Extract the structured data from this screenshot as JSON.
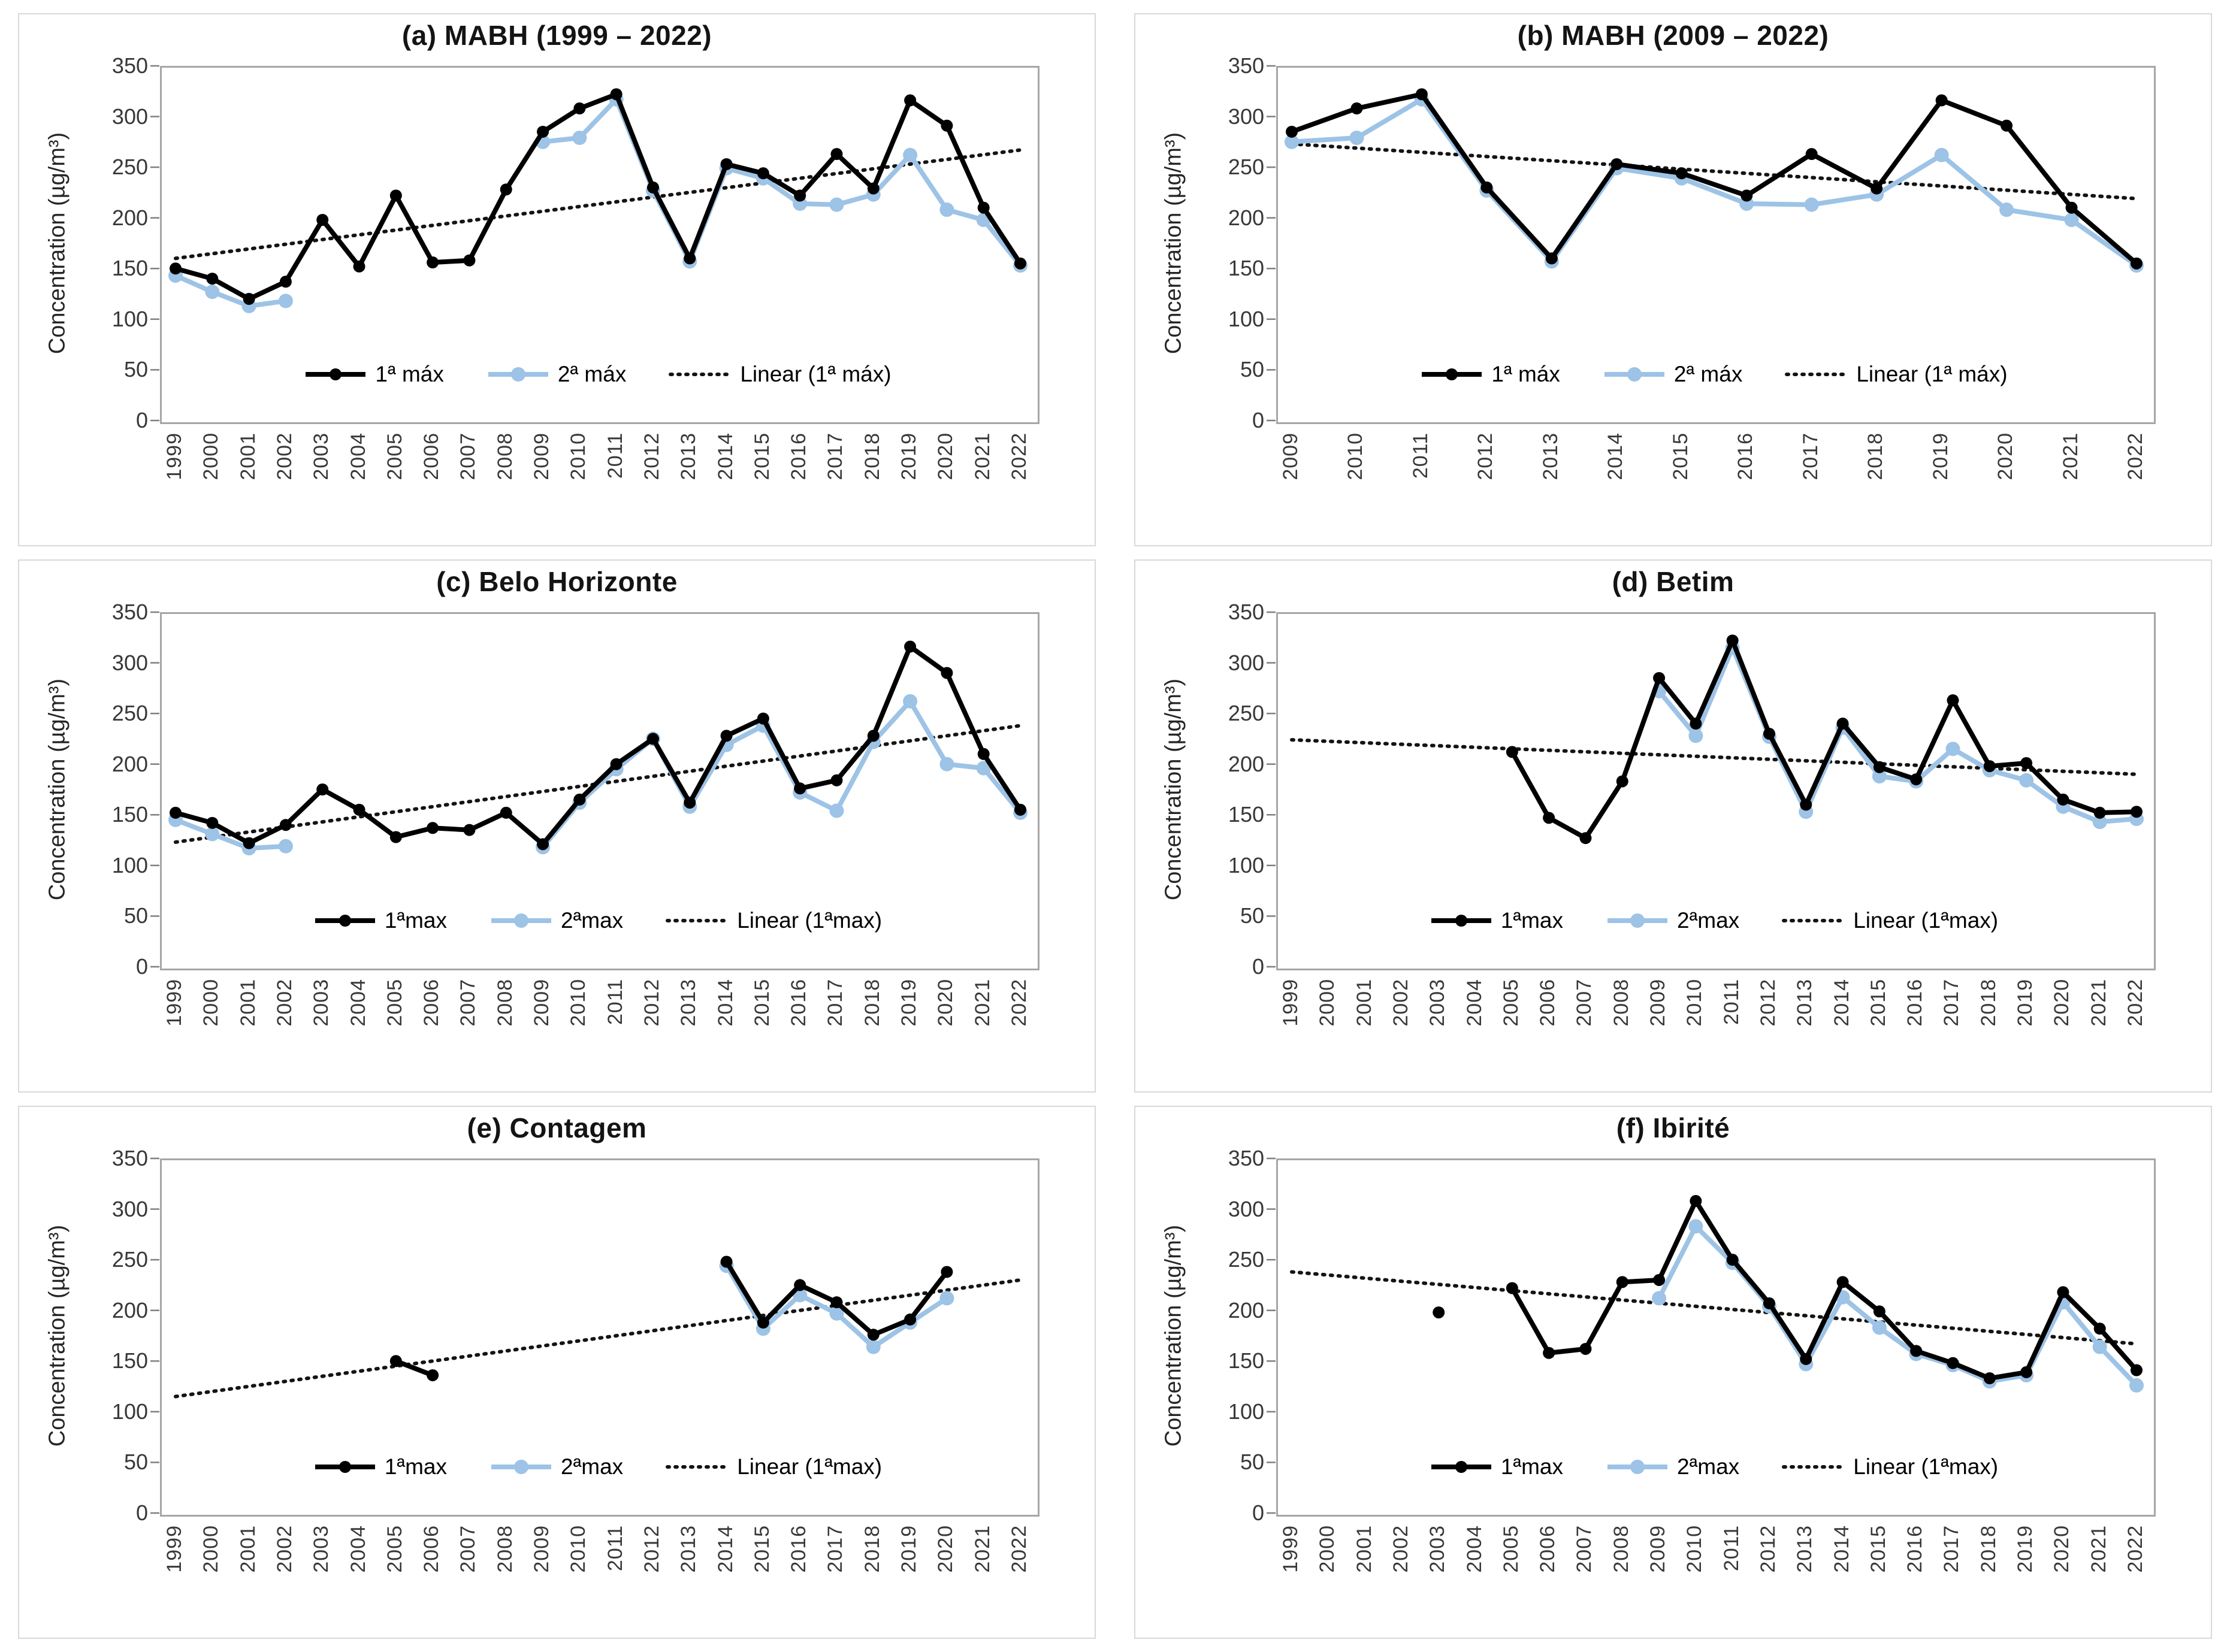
{
  "figure": {
    "ylabel": "Concentration (µg/m³)",
    "background": "#ffffff",
    "series1_color": "#000000",
    "series2_color": "#9dc3e6",
    "trend_color": "#141414",
    "axis_color": "#a6a6a6",
    "tick_color": "#383838"
  },
  "chart_data": [
    {
      "type": "line",
      "title": "(a) MABH (1999 – 2022)",
      "ylabel": "Concentration (µg/m³)",
      "ylim": [
        0,
        350
      ],
      "ytick_step": 50,
      "grid": false,
      "legend_position": "bottom-center-inside",
      "years": [
        1999,
        2000,
        2001,
        2002,
        2003,
        2004,
        2005,
        2006,
        2007,
        2008,
        2009,
        2010,
        2011,
        2012,
        2013,
        2014,
        2015,
        2016,
        2017,
        2018,
        2019,
        2020,
        2021,
        2022
      ],
      "series": [
        {
          "name": "1ª máx",
          "values": [
            150,
            140,
            120,
            137,
            198,
            152,
            222,
            156,
            158,
            228,
            285,
            308,
            322,
            230,
            160,
            253,
            244,
            222,
            263,
            229,
            316,
            291,
            210,
            155
          ]
        },
        {
          "name": "2ª máx",
          "values": [
            143,
            127,
            113,
            118,
            null,
            null,
            null,
            null,
            null,
            null,
            275,
            279,
            317,
            227,
            157,
            249,
            239,
            214,
            213,
            223,
            262,
            208,
            198,
            153
          ]
        }
      ],
      "trendline": {
        "name": "Linear (1ª máx)",
        "start": 160,
        "end": 267
      }
    },
    {
      "type": "line",
      "title": "(b) MABH (2009 – 2022)",
      "ylabel": "Concentration (µg/m³)",
      "ylim": [
        0,
        350
      ],
      "ytick_step": 50,
      "grid": false,
      "legend_position": "bottom-center-inside",
      "years": [
        2009,
        2010,
        2011,
        2012,
        2013,
        2014,
        2015,
        2016,
        2017,
        2018,
        2019,
        2020,
        2021,
        2022
      ],
      "series": [
        {
          "name": "1ª máx",
          "values": [
            285,
            308,
            322,
            230,
            160,
            253,
            244,
            222,
            263,
            229,
            316,
            291,
            210,
            155
          ]
        },
        {
          "name": "2ª máx",
          "values": [
            275,
            279,
            317,
            227,
            157,
            249,
            239,
            214,
            213,
            223,
            262,
            208,
            198,
            153
          ]
        }
      ],
      "trendline": {
        "name": "Linear (1ª máx)",
        "start": 273,
        "end": 219
      }
    },
    {
      "type": "line",
      "title": "(c) Belo Horizonte",
      "ylabel": "Concentration (µg/m³)",
      "ylim": [
        0,
        350
      ],
      "ytick_step": 50,
      "grid": false,
      "legend_position": "bottom-center-inside",
      "years": [
        1999,
        2000,
        2001,
        2002,
        2003,
        2004,
        2005,
        2006,
        2007,
        2008,
        2009,
        2010,
        2011,
        2012,
        2013,
        2014,
        2015,
        2016,
        2017,
        2018,
        2019,
        2020,
        2021,
        2022
      ],
      "series": [
        {
          "name": "1ªmax",
          "values": [
            152,
            142,
            122,
            140,
            175,
            155,
            128,
            137,
            135,
            152,
            121,
            165,
            200,
            225,
            162,
            228,
            245,
            176,
            184,
            228,
            316,
            290,
            210,
            155
          ]
        },
        {
          "name": "2ªmax",
          "values": [
            145,
            131,
            117,
            119,
            null,
            null,
            null,
            null,
            null,
            null,
            118,
            162,
            195,
            225,
            158,
            219,
            238,
            172,
            154,
            222,
            262,
            200,
            196,
            152
          ]
        }
      ],
      "trendline": {
        "name": "Linear (1ªmax)",
        "start": 123,
        "end": 238
      }
    },
    {
      "type": "line",
      "title": "(d) Betim",
      "ylabel": "Concentration (µg/m³)",
      "ylim": [
        0,
        350
      ],
      "ytick_step": 50,
      "grid": false,
      "legend_position": "bottom-center-inside",
      "years": [
        1999,
        2000,
        2001,
        2002,
        2003,
        2004,
        2005,
        2006,
        2007,
        2008,
        2009,
        2010,
        2011,
        2012,
        2013,
        2014,
        2015,
        2016,
        2017,
        2018,
        2019,
        2020,
        2021,
        2022
      ],
      "series": [
        {
          "name": "1ªmax",
          "values": [
            null,
            null,
            null,
            null,
            null,
            null,
            212,
            147,
            127,
            183,
            285,
            240,
            322,
            230,
            160,
            240,
            197,
            185,
            263,
            198,
            201,
            165,
            152,
            153
          ]
        },
        {
          "name": "2ªmax",
          "values": [
            null,
            null,
            null,
            null,
            null,
            null,
            null,
            null,
            null,
            null,
            272,
            228,
            315,
            227,
            153,
            236,
            188,
            183,
            215,
            194,
            184,
            158,
            143,
            146
          ]
        }
      ],
      "trendline": {
        "name": "Linear (1ªmax)",
        "start": 224,
        "end": 190
      }
    },
    {
      "type": "line",
      "title": "(e) Contagem",
      "ylabel": "Concentration (µg/m³)",
      "ylim": [
        0,
        350
      ],
      "ytick_step": 50,
      "grid": false,
      "legend_position": "bottom-center-inside",
      "years": [
        1999,
        2000,
        2001,
        2002,
        2003,
        2004,
        2005,
        2006,
        2007,
        2008,
        2009,
        2010,
        2011,
        2012,
        2013,
        2014,
        2015,
        2016,
        2017,
        2018,
        2019,
        2020,
        2021,
        2022
      ],
      "series": [
        {
          "name": "1ªmax",
          "values": [
            null,
            null,
            null,
            null,
            null,
            null,
            150,
            136,
            null,
            null,
            null,
            null,
            null,
            null,
            null,
            248,
            188,
            225,
            208,
            176,
            191,
            238,
            null,
            null
          ]
        },
        {
          "name": "2ªmax",
          "values": [
            null,
            null,
            null,
            null,
            null,
            null,
            null,
            null,
            null,
            null,
            null,
            null,
            null,
            null,
            null,
            244,
            182,
            215,
            197,
            164,
            188,
            212,
            null,
            null
          ]
        }
      ],
      "trendline": {
        "name": "Linear (1ªmax)",
        "start": 115,
        "end": 230
      }
    },
    {
      "type": "line",
      "title": "(f) Ibirité",
      "ylabel": "Concentration (µg/m³)",
      "ylim": [
        0,
        350
      ],
      "ytick_step": 50,
      "grid": false,
      "legend_position": "bottom-center-inside",
      "years": [
        1999,
        2000,
        2001,
        2002,
        2003,
        2004,
        2005,
        2006,
        2007,
        2008,
        2009,
        2010,
        2011,
        2012,
        2013,
        2014,
        2015,
        2016,
        2017,
        2018,
        2019,
        2020,
        2021,
        2022
      ],
      "series": [
        {
          "name": "1ªmax",
          "values": [
            null,
            null,
            null,
            null,
            198,
            null,
            222,
            158,
            162,
            228,
            230,
            308,
            250,
            207,
            152,
            228,
            199,
            160,
            148,
            133,
            139,
            218,
            182,
            141
          ]
        },
        {
          "name": "2ªmax",
          "values": [
            null,
            null,
            null,
            null,
            null,
            null,
            null,
            null,
            null,
            null,
            212,
            283,
            247,
            204,
            147,
            213,
            183,
            157,
            146,
            130,
            136,
            208,
            164,
            126
          ]
        }
      ],
      "trendline": {
        "name": "Linear (1ªmax)",
        "start": 238,
        "end": 167
      }
    }
  ]
}
